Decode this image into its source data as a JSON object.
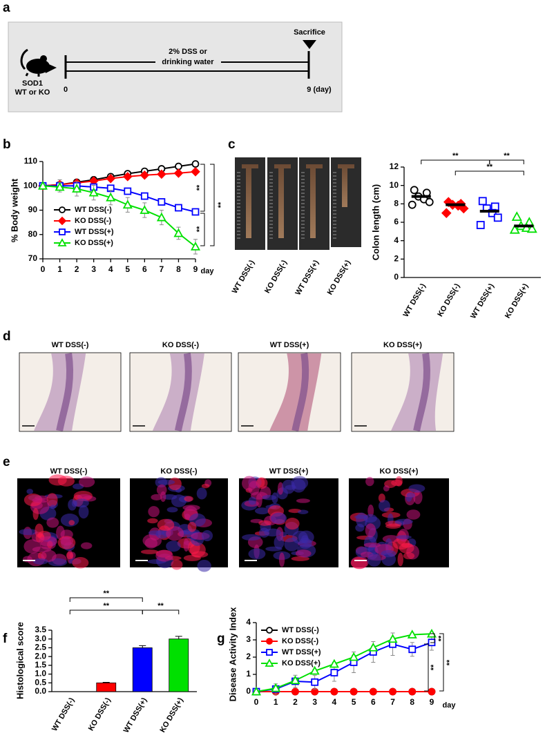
{
  "figure": {
    "a": {
      "label": "a",
      "subject": [
        "SOD1",
        "WT or KO"
      ],
      "treatment": [
        "2% DSS or",
        "drinking water"
      ],
      "endpoint": "Sacrifice",
      "start": "0",
      "end": "9 (day)"
    },
    "c_photos": {
      "labels": [
        "WT DSS(-)",
        "KO DSS(-)",
        "WT DSS(+)",
        "KO DSS(+)"
      ]
    },
    "d": {
      "label": "d",
      "titles": [
        "WT DSS(-)",
        "KO DSS(-)",
        "WT DSS(+)",
        "KO DSS(+)"
      ]
    },
    "e": {
      "label": "e",
      "titles": [
        "WT DSS(-)",
        "KO DSS(-)",
        "WT DSS(+)",
        "KO DSS(+)"
      ]
    }
  },
  "chart_data": [
    {
      "panel": "b",
      "type": "line",
      "ylabel": "% Body weight",
      "xlabel": "day",
      "x": [
        0,
        1,
        2,
        3,
        4,
        5,
        6,
        7,
        8,
        9
      ],
      "xlim": [
        0,
        9
      ],
      "xticks": [
        0,
        1,
        2,
        3,
        4,
        5,
        6,
        7,
        8,
        9
      ],
      "ylim": [
        70,
        110
      ],
      "yticks": [
        70,
        80,
        90,
        100,
        110
      ],
      "legend": "lower left",
      "series": [
        {
          "name": "WT DSS(-)",
          "color": "#000000",
          "marker": "circle",
          "filled": false,
          "values": [
            100,
            100.5,
            101.5,
            102.5,
            103.8,
            105,
            106,
            107,
            108,
            109
          ],
          "errors": [
            0,
            2,
            1,
            1,
            1,
            1,
            1,
            1,
            1,
            1
          ]
        },
        {
          "name": "KO DSS(-)",
          "color": "#ff0000",
          "marker": "diamond",
          "filled": true,
          "values": [
            100,
            100.5,
            101.2,
            102,
            103,
            103.8,
            104.4,
            104.8,
            105.2,
            105.8
          ],
          "errors": [
            0,
            1,
            1,
            1,
            1,
            1,
            1,
            1,
            1,
            1
          ]
        },
        {
          "name": "WT DSS(+)",
          "color": "#0000ff",
          "marker": "square",
          "filled": false,
          "values": [
            100,
            100,
            100,
            99.5,
            99,
            97.8,
            95.8,
            93.4,
            91,
            89.3
          ],
          "errors": [
            0,
            1,
            1,
            1,
            1,
            1,
            1,
            1,
            1,
            1
          ]
        },
        {
          "name": "KO DSS(+)",
          "color": "#00e000",
          "marker": "triangle",
          "filled": false,
          "values": [
            100,
            99.5,
            98.8,
            97.2,
            95.2,
            92.2,
            90,
            87,
            80.5,
            75
          ],
          "errors": [
            0,
            2,
            3,
            3,
            3,
            3,
            3,
            3,
            2.5,
            3
          ]
        }
      ],
      "annotations": [
        "**",
        "**",
        "**"
      ]
    },
    {
      "panel": "c",
      "type": "dot",
      "ylabel": "Colon length (cm)",
      "categories": [
        "WT DSS(-)",
        "KO DSS(-)",
        "WT DSS(+)",
        "KO DSS(+)"
      ],
      "colors": [
        "#000000",
        "#ff0000",
        "#0000ff",
        "#00e000"
      ],
      "markers": [
        "circle",
        "diamond",
        "square",
        "triangle"
      ],
      "filled": [
        false,
        true,
        false,
        false
      ],
      "points": [
        [
          9.5,
          9.2,
          8.8,
          8.5,
          8.2,
          7.9
        ],
        [
          8.2,
          8.0,
          7.9,
          7.8,
          7.5,
          7.0
        ],
        [
          8.3,
          7.7,
          7.5,
          7.0,
          6.5,
          5.7
        ],
        [
          6.6,
          6.0,
          5.6,
          5.4,
          5.3,
          5.2
        ]
      ],
      "means": [
        8.8,
        7.9,
        7.2,
        5.6
      ],
      "ylim": [
        0,
        12
      ],
      "yticks": [
        0,
        2,
        4,
        6,
        8,
        10,
        12
      ],
      "annotations": [
        "**",
        "**",
        "**"
      ]
    },
    {
      "panel": "f",
      "type": "bar",
      "ylabel": "Histological score",
      "categories": [
        "WT DSS(-)",
        "KO DSS(-)",
        "WT DSS(+)",
        "KO DSS(+)"
      ],
      "values": [
        0,
        0.5,
        2.5,
        3
      ],
      "errors": [
        0,
        0.03,
        0.12,
        0.15
      ],
      "colors": [
        "#000000",
        "#ff0000",
        "#0000ff",
        "#00e000"
      ],
      "ylim": [
        0,
        3.5
      ],
      "yticks": [
        {
          "value": 0,
          "label": "0.0"
        },
        {
          "value": 0.5,
          "label": "0.5"
        },
        {
          "value": 1,
          "label": "1.0"
        },
        {
          "value": 1.5,
          "label": "1.5"
        },
        {
          "value": 2,
          "label": "2.0"
        },
        {
          "value": 2.5,
          "label": "2.5"
        },
        {
          "value": 3,
          "label": "3.0"
        },
        {
          "value": 3.5,
          "label": "3.5"
        }
      ],
      "annotations": [
        "**",
        "**",
        "**"
      ]
    },
    {
      "panel": "g",
      "type": "line",
      "ylabel": "Disease Activity Index",
      "xlabel": "day",
      "x": [
        0,
        1,
        2,
        3,
        4,
        5,
        6,
        7,
        8,
        9
      ],
      "xlim": [
        0,
        9
      ],
      "xticks": [
        0,
        1,
        2,
        3,
        4,
        5,
        6,
        7,
        8,
        9
      ],
      "ylim": [
        0,
        4
      ],
      "yticks": [
        0,
        1,
        2,
        3,
        4
      ],
      "legend": "upper left",
      "series": [
        {
          "name": "WT DSS(-)",
          "color": "#000000",
          "marker": "circle",
          "filled": false,
          "values": [
            0,
            0,
            0,
            0,
            0,
            0,
            0,
            0,
            0,
            0
          ]
        },
        {
          "name": "KO DSS(-)",
          "color": "#ff0000",
          "marker": "circle",
          "filled": true,
          "values": [
            0,
            0,
            0,
            0,
            0,
            0,
            0,
            0,
            0,
            0
          ]
        },
        {
          "name": "WT DSS(+)",
          "color": "#0000ff",
          "marker": "square",
          "filled": false,
          "values": [
            0,
            0.15,
            0.6,
            0.55,
            1.1,
            1.7,
            2.3,
            2.75,
            2.45,
            2.85
          ],
          "errors": [
            0,
            0.3,
            0.35,
            0.4,
            0.5,
            0.6,
            0.6,
            0.65,
            0.4,
            0.45
          ]
        },
        {
          "name": "KO DSS(+)",
          "color": "#00e000",
          "marker": "triangle",
          "filled": false,
          "values": [
            0,
            0.2,
            0.65,
            1.2,
            1.6,
            2.0,
            2.55,
            3.05,
            3.3,
            3.35
          ],
          "errors": [
            0,
            0.1,
            0.1,
            0.1,
            0.1,
            0.1,
            0.1,
            0.1,
            0.1,
            0.1
          ]
        }
      ],
      "annotations": [
        "**",
        "**",
        "**"
      ]
    }
  ]
}
